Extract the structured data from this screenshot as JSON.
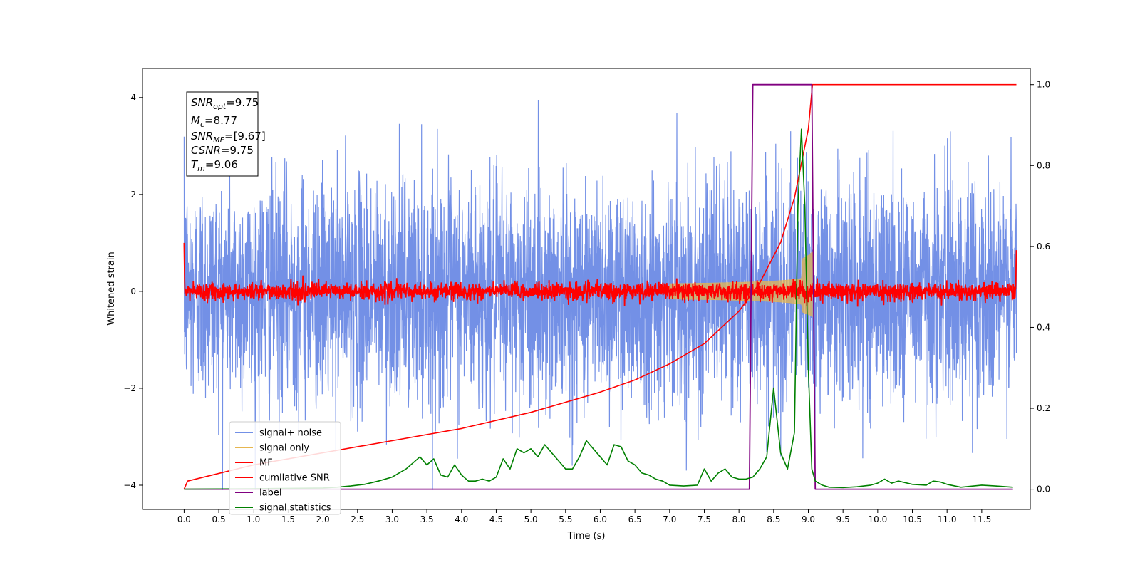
{
  "chart_data": {
    "type": "line",
    "xlabel": "Time (s)",
    "ylabel": "Whitened strain",
    "xlim": [
      -0.6,
      12.2
    ],
    "ylim": [
      -4.5,
      4.6
    ],
    "y2lim": [
      -0.05,
      1.04
    ],
    "x_ticks": [
      "0.0",
      "0.5",
      "1.0",
      "1.5",
      "2.0",
      "2.5",
      "3.0",
      "3.5",
      "4.0",
      "4.5",
      "5.0",
      "5.5",
      "6.0",
      "6.5",
      "7.0",
      "7.5",
      "8.0",
      "8.5",
      "9.0",
      "9.5",
      "10.0",
      "10.5",
      "11.0",
      "11.5"
    ],
    "y_ticks": [
      "4",
      "2",
      "0",
      "−2",
      "−4"
    ],
    "y2_ticks": [
      "1.0",
      "0.8",
      "0.6",
      "0.4",
      "0.2",
      "0.0"
    ],
    "grid": false,
    "legend_position": "lower-left",
    "annotation": {
      "snr_opt": "=9.75",
      "mc": "=8.77",
      "snr_mf": "=[9.67]",
      "csnr": "=9.75",
      "tm": "=9.06"
    },
    "series": [
      {
        "name": "signal+ noise",
        "color": "#7390e6",
        "axis": "left",
        "x_range": [
          0,
          12
        ],
        "noise_std": 1.0,
        "offset": 0.0
      },
      {
        "name": "signal only",
        "color": "#e6b650",
        "axis": "left",
        "chirp_start": 7.0,
        "chirp_peak": 9.06,
        "peak_amplitude": 1.0
      },
      {
        "name": "MF",
        "color": "#ff0000",
        "axis": "left",
        "x_range": [
          0,
          12
        ],
        "noise_std": 0.09,
        "offset": 0.0
      },
      {
        "name": "cumilative SNR",
        "color": "#ff0000",
        "axis": "right",
        "x": [
          0,
          0.05,
          1,
          2,
          3,
          4,
          5,
          6,
          6.5,
          7,
          7.5,
          8,
          8.3,
          8.6,
          8.8,
          9.0,
          9.06,
          9.07,
          12
        ],
        "y": [
          0.0,
          0.02,
          0.06,
          0.09,
          0.12,
          0.15,
          0.19,
          0.24,
          0.27,
          0.31,
          0.36,
          0.44,
          0.51,
          0.61,
          0.72,
          0.89,
          1.0,
          1.0,
          1.0
        ]
      },
      {
        "name": "label",
        "color": "#800080",
        "axis": "right",
        "x": [
          0,
          8.15,
          8.2,
          9.05,
          9.1,
          11.95
        ],
        "y": [
          0,
          0,
          1,
          1,
          0,
          0
        ]
      },
      {
        "name": "signal statistics",
        "color": "#008000",
        "axis": "right",
        "x": [
          0,
          1,
          2,
          2.2,
          2.4,
          2.6,
          2.8,
          3.0,
          3.2,
          3.4,
          3.5,
          3.6,
          3.7,
          3.8,
          3.9,
          4.0,
          4.1,
          4.2,
          4.3,
          4.4,
          4.5,
          4.6,
          4.7,
          4.8,
          4.9,
          5.0,
          5.1,
          5.2,
          5.3,
          5.4,
          5.5,
          5.6,
          5.7,
          5.8,
          5.9,
          6.0,
          6.1,
          6.2,
          6.3,
          6.4,
          6.5,
          6.6,
          6.7,
          6.8,
          6.9,
          7.0,
          7.2,
          7.4,
          7.5,
          7.6,
          7.7,
          7.8,
          7.9,
          8.0,
          8.1,
          8.2,
          8.3,
          8.4,
          8.5,
          8.6,
          8.7,
          8.8,
          8.85,
          8.9,
          8.95,
          9.0,
          9.05,
          9.1,
          9.2,
          9.3,
          9.5,
          9.7,
          9.9,
          10.0,
          10.1,
          10.2,
          10.3,
          10.5,
          10.7,
          10.8,
          10.9,
          11.0,
          11.2,
          11.5,
          11.7,
          11.95
        ],
        "y": [
          0.0,
          0.001,
          0.003,
          0.005,
          0.008,
          0.012,
          0.02,
          0.03,
          0.05,
          0.08,
          0.06,
          0.075,
          0.035,
          0.03,
          0.06,
          0.035,
          0.02,
          0.02,
          0.025,
          0.02,
          0.03,
          0.075,
          0.05,
          0.1,
          0.09,
          0.1,
          0.08,
          0.11,
          0.09,
          0.07,
          0.05,
          0.05,
          0.08,
          0.12,
          0.1,
          0.08,
          0.06,
          0.11,
          0.105,
          0.07,
          0.06,
          0.04,
          0.035,
          0.025,
          0.02,
          0.01,
          0.008,
          0.01,
          0.05,
          0.02,
          0.04,
          0.05,
          0.03,
          0.025,
          0.025,
          0.03,
          0.05,
          0.08,
          0.25,
          0.09,
          0.05,
          0.14,
          0.7,
          0.89,
          0.7,
          0.3,
          0.05,
          0.02,
          0.01,
          0.005,
          0.004,
          0.006,
          0.01,
          0.015,
          0.025,
          0.015,
          0.02,
          0.012,
          0.01,
          0.02,
          0.018,
          0.012,
          0.005,
          0.01,
          0.008,
          0.005
        ]
      }
    ]
  }
}
